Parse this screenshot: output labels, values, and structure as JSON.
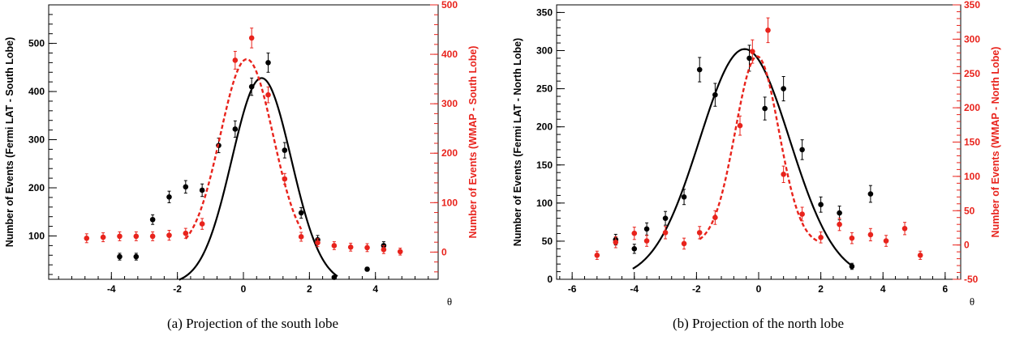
{
  "charts": [
    {
      "id": "a",
      "caption": "(a)  Projection of the south lobe",
      "chart_data": {
        "type": "scatter",
        "xlabel": "θ",
        "ylabel_left": "Number of Events (Fermi LAT - South Lobe)",
        "ylabel_right": "Number of Events (WMAP - South Lobe)",
        "xlim": [
          -5.9,
          5.9
        ],
        "ylim_left": [
          10,
          580
        ],
        "ylim_right": [
          -55,
          500
        ],
        "x_ticks": [
          -4,
          -2,
          0,
          2,
          4
        ],
        "y_ticks_left": [
          100,
          200,
          300,
          400,
          500
        ],
        "y_ticks_right": [
          0,
          100,
          200,
          300,
          400,
          500
        ],
        "grid": false,
        "colors": {
          "fermi": "#000000",
          "wmap": "#e8231c"
        },
        "series": [
          {
            "axis": "left",
            "points": [
              {
                "x": -3.75,
                "y": 57,
                "err": 7
              },
              {
                "x": -3.25,
                "y": 57,
                "err": 7
              },
              {
                "x": -2.75,
                "y": 134,
                "err": 10
              },
              {
                "x": -2.25,
                "y": 181,
                "err": 12
              },
              {
                "x": -1.75,
                "y": 202,
                "err": 13
              },
              {
                "x": -1.25,
                "y": 195,
                "err": 13
              },
              {
                "x": -0.75,
                "y": 288,
                "err": 15
              },
              {
                "x": -0.25,
                "y": 322,
                "err": 17
              },
              {
                "x": 0.25,
                "y": 410,
                "err": 18
              },
              {
                "x": 0.75,
                "y": 460,
                "err": 20
              },
              {
                "x": 1.25,
                "y": 278,
                "err": 16
              },
              {
                "x": 1.75,
                "y": 148,
                "err": 11
              },
              {
                "x": 2.25,
                "y": 92,
                "err": 9
              },
              {
                "x": 2.75,
                "y": 14,
                "err": 3
              },
              {
                "x": 3.75,
                "y": 31,
                "err": 4
              },
              {
                "x": 4.25,
                "y": 80,
                "err": 8
              }
            ],
            "fit": {
              "mu": 0.55,
              "sigma": 0.9,
              "amp": 428,
              "base": 0,
              "range": [
                -1.95,
                2.85
              ]
            }
          },
          {
            "axis": "right",
            "points": [
              {
                "x": -4.75,
                "y": 28,
                "err": 9
              },
              {
                "x": -4.25,
                "y": 30,
                "err": 9
              },
              {
                "x": -3.75,
                "y": 32,
                "err": 9
              },
              {
                "x": -3.25,
                "y": 32,
                "err": 9
              },
              {
                "x": -2.75,
                "y": 32,
                "err": 9
              },
              {
                "x": -2.25,
                "y": 34,
                "err": 10
              },
              {
                "x": -1.75,
                "y": 38,
                "err": 10
              },
              {
                "x": -1.25,
                "y": 57,
                "err": 11
              },
              {
                "x": -0.25,
                "y": 388,
                "err": 18
              },
              {
                "x": 0.25,
                "y": 433,
                "err": 20
              },
              {
                "x": 0.75,
                "y": 318,
                "err": 16
              },
              {
                "x": 1.25,
                "y": 148,
                "err": 11
              },
              {
                "x": 1.75,
                "y": 31,
                "err": 9
              },
              {
                "x": 2.25,
                "y": 19,
                "err": 8
              },
              {
                "x": 2.75,
                "y": 13,
                "err": 8
              },
              {
                "x": 3.25,
                "y": 10,
                "err": 8
              },
              {
                "x": 3.75,
                "y": 9,
                "err": 8
              },
              {
                "x": 4.25,
                "y": 5,
                "err": 8
              },
              {
                "x": 4.75,
                "y": 1,
                "err": 7
              }
            ],
            "fit": {
              "mu": 0.1,
              "sigma": 0.8,
              "amp": 390,
              "base": 0,
              "range": [
                -1.75,
                1.75
              ]
            }
          }
        ]
      }
    },
    {
      "id": "b",
      "caption": "(b)  Projection of the north lobe",
      "chart_data": {
        "type": "scatter",
        "xlabel": "θ",
        "ylabel_left": "Number of Events (Fermi LAT - North Lobe)",
        "ylabel_right": "Number of Events (WMAP - North Lobe)",
        "xlim": [
          -6.5,
          6.5
        ],
        "ylim_left": [
          0,
          360
        ],
        "ylim_right": [
          -50,
          350
        ],
        "x_ticks": [
          -6,
          -4,
          -2,
          0,
          2,
          4,
          6
        ],
        "y_ticks_left": [
          0,
          50,
          100,
          150,
          200,
          250,
          300,
          350
        ],
        "y_ticks_right": [
          -50,
          0,
          50,
          100,
          150,
          200,
          250,
          300,
          350
        ],
        "grid": false,
        "colors": {
          "fermi": "#000000",
          "wmap": "#e8231c"
        },
        "series": [
          {
            "axis": "left",
            "points": [
              {
                "x": -4.6,
                "y": 52,
                "err": 7
              },
              {
                "x": -4.0,
                "y": 40,
                "err": 6
              },
              {
                "x": -3.6,
                "y": 66,
                "err": 8
              },
              {
                "x": -3.0,
                "y": 80,
                "err": 9
              },
              {
                "x": -2.4,
                "y": 108,
                "err": 10
              },
              {
                "x": -1.9,
                "y": 275,
                "err": 16
              },
              {
                "x": -1.4,
                "y": 242,
                "err": 15
              },
              {
                "x": -0.3,
                "y": 290,
                "err": 17
              },
              {
                "x": 0.2,
                "y": 224,
                "err": 15
              },
              {
                "x": 0.8,
                "y": 250,
                "err": 16
              },
              {
                "x": 1.4,
                "y": 170,
                "err": 13
              },
              {
                "x": 2.0,
                "y": 98,
                "err": 10
              },
              {
                "x": 2.6,
                "y": 87,
                "err": 9
              },
              {
                "x": 3.0,
                "y": 17,
                "err": 4
              },
              {
                "x": 3.6,
                "y": 112,
                "err": 11
              }
            ],
            "fit": {
              "mu": -0.45,
              "sigma": 1.45,
              "amp": 302,
              "base": 0,
              "range": [
                -4.05,
                3.05
              ]
            }
          },
          {
            "axis": "right",
            "points": [
              {
                "x": -5.2,
                "y": -15,
                "err": 6
              },
              {
                "x": -4.6,
                "y": 4,
                "err": 8
              },
              {
                "x": -4.0,
                "y": 17,
                "err": 9
              },
              {
                "x": -3.6,
                "y": 6,
                "err": 8
              },
              {
                "x": -3.0,
                "y": 18,
                "err": 9
              },
              {
                "x": -2.4,
                "y": 2,
                "err": 8
              },
              {
                "x": -1.9,
                "y": 18,
                "err": 9
              },
              {
                "x": -1.4,
                "y": 40,
                "err": 10
              },
              {
                "x": -0.6,
                "y": 174,
                "err": 14
              },
              {
                "x": -0.2,
                "y": 282,
                "err": 17
              },
              {
                "x": 0.3,
                "y": 313,
                "err": 18
              },
              {
                "x": 0.8,
                "y": 103,
                "err": 12
              },
              {
                "x": 1.4,
                "y": 45,
                "err": 10
              },
              {
                "x": 2.0,
                "y": 11,
                "err": 8
              },
              {
                "x": 2.6,
                "y": 30,
                "err": 9
              },
              {
                "x": 3.0,
                "y": 10,
                "err": 8
              },
              {
                "x": 3.6,
                "y": 15,
                "err": 9
              },
              {
                "x": 4.1,
                "y": 6,
                "err": 8
              },
              {
                "x": 4.7,
                "y": 24,
                "err": 9
              },
              {
                "x": 5.2,
                "y": -15,
                "err": 6
              }
            ],
            "fit": {
              "mu": -0.05,
              "sigma": 0.7,
              "amp": 275,
              "base": 0,
              "range": [
                -1.9,
                1.95
              ]
            }
          }
        ]
      }
    }
  ]
}
